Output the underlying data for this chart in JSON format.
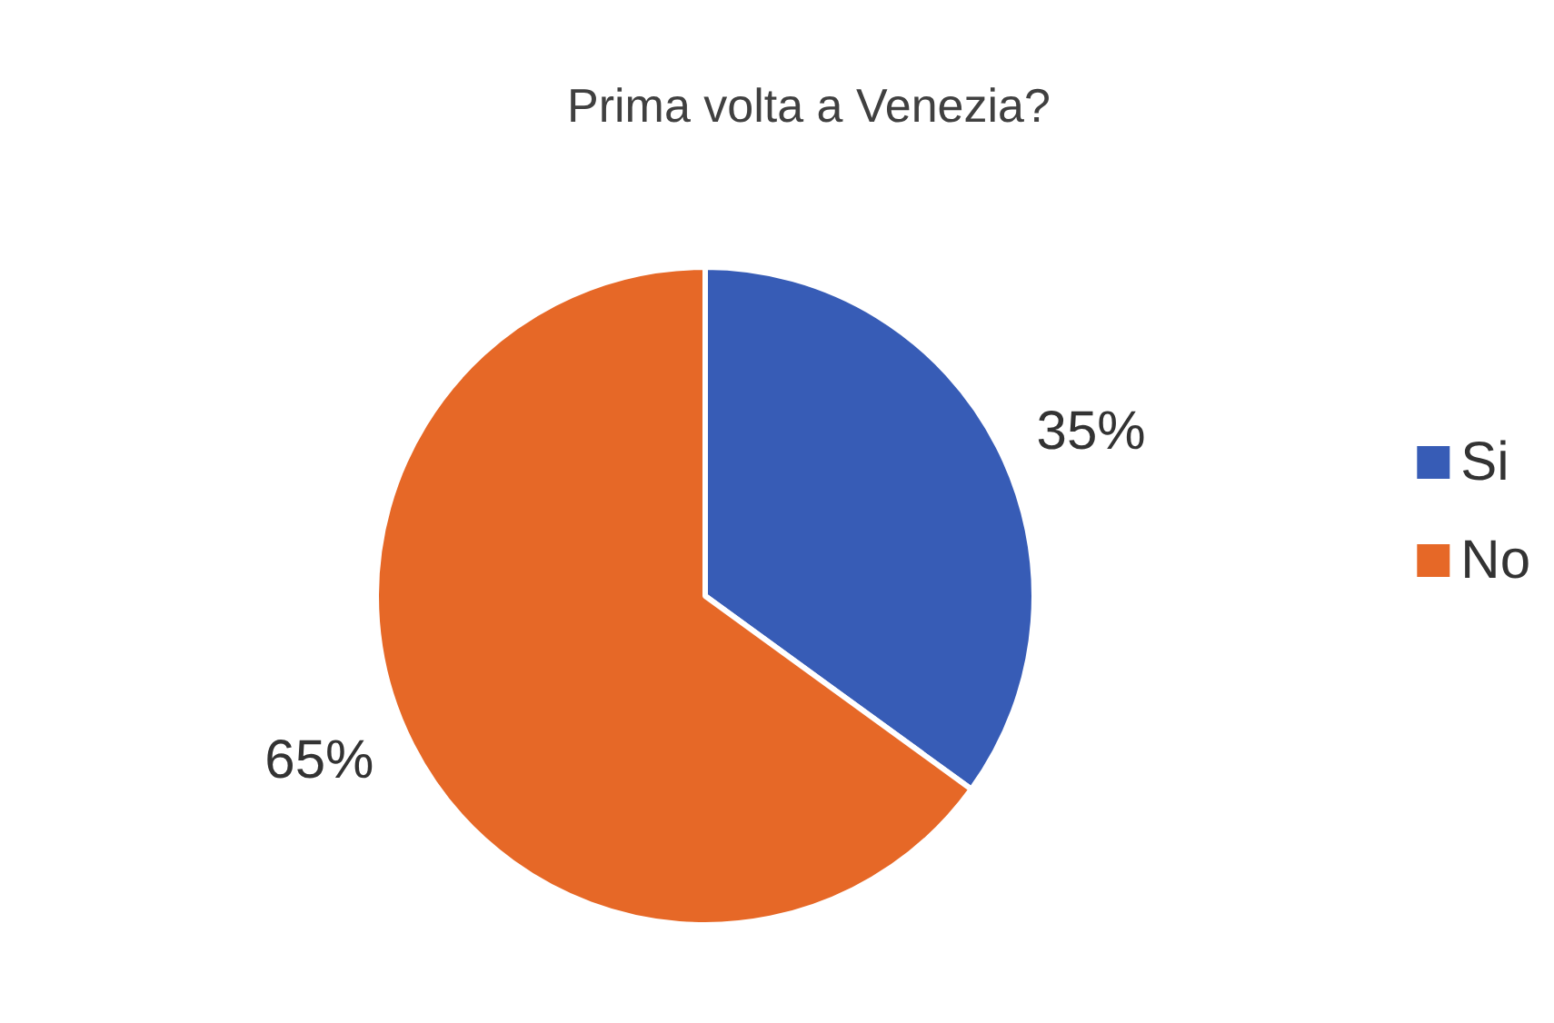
{
  "chart_data": {
    "type": "pie",
    "title": "Prima volta a Venezia?",
    "categories": [
      "Si",
      "No"
    ],
    "values": [
      35,
      65
    ],
    "colors": [
      "#375cb6",
      "#e66827"
    ],
    "value_labels": [
      "35%",
      "65%"
    ],
    "legend": "right"
  }
}
